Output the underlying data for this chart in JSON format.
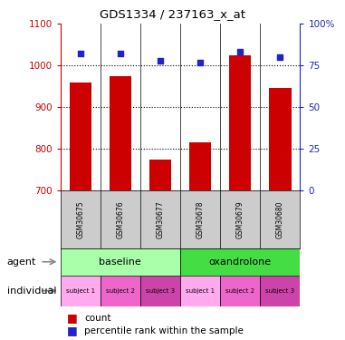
{
  "title": "GDS1334 / 237163_x_at",
  "samples": [
    "GSM30675",
    "GSM30676",
    "GSM30677",
    "GSM30678",
    "GSM30679",
    "GSM30680"
  ],
  "count_values": [
    960,
    975,
    775,
    815,
    1025,
    945
  ],
  "percentile_values": [
    82,
    82,
    78,
    77,
    83,
    80
  ],
  "ylim_left": [
    700,
    1100
  ],
  "ylim_right": [
    0,
    100
  ],
  "yticks_left": [
    700,
    800,
    900,
    1000,
    1100
  ],
  "yticks_right": [
    0,
    25,
    50,
    75,
    100
  ],
  "ytick_labels_right": [
    "0",
    "25",
    "50",
    "75",
    "100%"
  ],
  "bar_color": "#cc0000",
  "dot_color": "#2222cc",
  "agent_baseline_color": "#aaffaa",
  "agent_oxandrolone_color": "#44dd44",
  "individual_colors": [
    "#ffaaee",
    "#ee66cc",
    "#cc44aa",
    "#ffaaee",
    "#ee66cc",
    "#cc44aa"
  ],
  "individual_labels": [
    "subject 1",
    "subject 2",
    "subject 3",
    "subject 1",
    "subject 2",
    "subject 3"
  ],
  "legend_count_label": "count",
  "legend_percentile_label": "percentile rank within the sample"
}
